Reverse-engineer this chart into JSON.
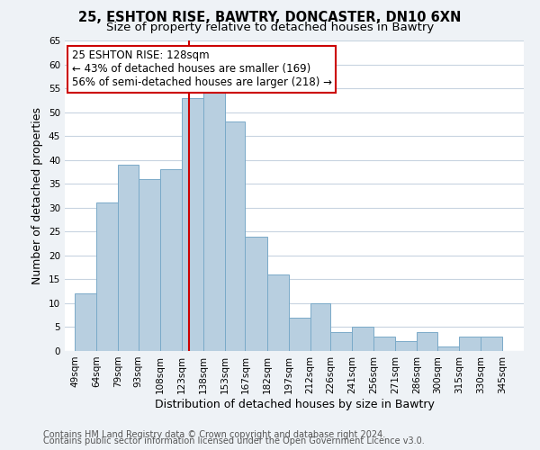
{
  "title": "25, ESHTON RISE, BAWTRY, DONCASTER, DN10 6XN",
  "subtitle": "Size of property relative to detached houses in Bawtry",
  "xlabel": "Distribution of detached houses by size in Bawtry",
  "ylabel": "Number of detached properties",
  "footer1": "Contains HM Land Registry data © Crown copyright and database right 2024.",
  "footer2": "Contains public sector information licensed under the Open Government Licence v3.0.",
  "bar_left_edges": [
    49,
    64,
    79,
    93,
    108,
    123,
    138,
    153,
    167,
    182,
    197,
    212,
    226,
    241,
    256,
    271,
    286,
    300,
    315,
    330
  ],
  "bar_heights": [
    12,
    31,
    39,
    36,
    38,
    53,
    54,
    48,
    24,
    16,
    7,
    10,
    4,
    5,
    3,
    2,
    4,
    1,
    3,
    3
  ],
  "bar_widths": [
    15,
    15,
    14,
    15,
    15,
    15,
    15,
    14,
    15,
    15,
    15,
    14,
    15,
    15,
    15,
    15,
    14,
    15,
    15,
    15
  ],
  "bar_color": "#b8cfe0",
  "bar_edgecolor": "#7aaac8",
  "vline_x": 128,
  "vline_color": "#cc0000",
  "annotation_text_line1": "25 ESHTON RISE: 128sqm",
  "annotation_text_line2": "← 43% of detached houses are smaller (169)",
  "annotation_text_line3": "56% of semi-detached houses are larger (218) →",
  "ylim": [
    0,
    65
  ],
  "yticks": [
    0,
    5,
    10,
    15,
    20,
    25,
    30,
    35,
    40,
    45,
    50,
    55,
    60,
    65
  ],
  "xtick_labels": [
    "49sqm",
    "64sqm",
    "79sqm",
    "93sqm",
    "108sqm",
    "123sqm",
    "138sqm",
    "153sqm",
    "167sqm",
    "182sqm",
    "197sqm",
    "212sqm",
    "226sqm",
    "241sqm",
    "256sqm",
    "271sqm",
    "286sqm",
    "300sqm",
    "315sqm",
    "330sqm",
    "345sqm"
  ],
  "xtick_positions": [
    49,
    64,
    79,
    93,
    108,
    123,
    138,
    153,
    167,
    182,
    197,
    212,
    226,
    241,
    256,
    271,
    286,
    300,
    315,
    330,
    345
  ],
  "xlim_left": 42,
  "xlim_right": 360,
  "background_color": "#eef2f6",
  "plot_background_color": "#ffffff",
  "grid_color": "#c8d4e0",
  "title_fontsize": 10.5,
  "subtitle_fontsize": 9.5,
  "axis_label_fontsize": 9,
  "tick_fontsize": 7.5,
  "footer_fontsize": 7,
  "annotation_fontsize": 8.5
}
